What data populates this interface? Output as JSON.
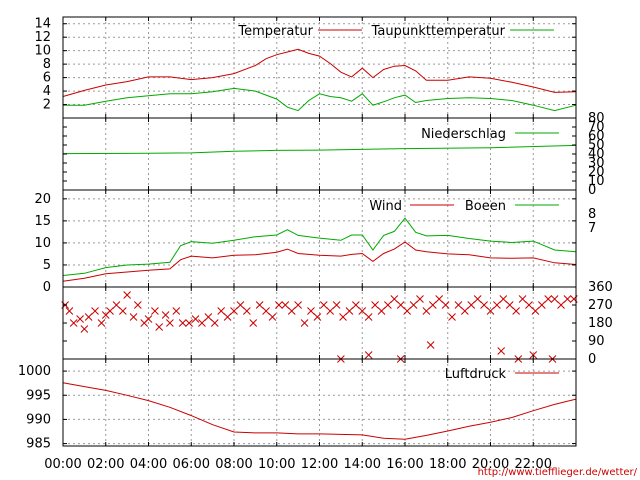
{
  "colors": {
    "red": "#cc0000",
    "green": "#00aa00",
    "grid": "#9a9a9a",
    "frame": "#000000"
  },
  "credit": "http://www.tiefflieger.de/wetter/",
  "chart_data": [
    {
      "panel": "temperature",
      "type": "line",
      "x_unit": "hours",
      "x_range": [
        0,
        24
      ],
      "ylim": [
        0,
        15
      ],
      "y_ticks": [
        2,
        4,
        6,
        8,
        10,
        12,
        14
      ],
      "grid": true,
      "legend_position": "top-right",
      "series": [
        {
          "name": "Temperatur",
          "color": "red",
          "x": [
            0,
            1,
            2,
            3,
            4,
            5,
            6,
            7,
            8,
            9,
            9.5,
            10,
            10.5,
            11,
            11.5,
            12,
            12.5,
            13,
            13.5,
            14,
            14.5,
            15,
            15.5,
            16,
            16.5,
            17,
            18,
            19,
            20,
            21,
            22,
            23,
            24
          ],
          "y": [
            3.2,
            4.1,
            4.9,
            5.4,
            6.1,
            6.1,
            5.7,
            6.0,
            6.6,
            7.8,
            8.8,
            9.4,
            9.8,
            10.2,
            9.6,
            9.2,
            8.1,
            6.8,
            6.1,
            7.4,
            6.0,
            7.2,
            7.7,
            7.8,
            7.0,
            5.6,
            5.6,
            6.1,
            5.9,
            5.3,
            4.6,
            3.8,
            3.9
          ]
        },
        {
          "name": "Taupunkttemperatur",
          "color": "green",
          "x": [
            0,
            1,
            2,
            3,
            4,
            5,
            6,
            7,
            8,
            9,
            9.5,
            10,
            10.5,
            11,
            11.5,
            12,
            12.5,
            13,
            13.5,
            14,
            14.5,
            15,
            15.5,
            16,
            16.5,
            17,
            18,
            19,
            20,
            21,
            22,
            23,
            24
          ],
          "y": [
            1.9,
            1.9,
            2.5,
            3.0,
            3.3,
            3.6,
            3.6,
            3.9,
            4.4,
            4.0,
            3.4,
            2.8,
            1.6,
            1.1,
            2.6,
            3.6,
            3.2,
            3.0,
            2.5,
            3.6,
            1.9,
            2.4,
            3.0,
            3.4,
            2.3,
            2.6,
            2.9,
            3.0,
            2.9,
            2.6,
            1.9,
            1.1,
            1.9
          ]
        }
      ]
    },
    {
      "panel": "precipitation",
      "type": "line",
      "x_unit": "hours",
      "x_range": [
        0,
        24
      ],
      "ylim": [
        0,
        80
      ],
      "y_ticks": [
        0,
        10,
        20,
        30,
        40,
        50,
        60,
        70,
        80
      ],
      "grid": false,
      "legend_position": "top-right",
      "series": [
        {
          "name": "Niederschlag",
          "color": "green",
          "x": [
            0,
            4,
            6,
            8,
            10,
            12,
            16,
            20,
            24
          ],
          "y": [
            40.5,
            40.8,
            41.2,
            43.0,
            44.0,
            44.3,
            46.0,
            47.0,
            49.5
          ]
        }
      ]
    },
    {
      "panel": "wind",
      "type": "line",
      "x_unit": "hours",
      "x_range": [
        0,
        24
      ],
      "ylim": [
        0,
        22
      ],
      "y_ticks": [
        0,
        5,
        10,
        15,
        20
      ],
      "secondary_y_ticks": [
        7,
        8
      ],
      "grid": true,
      "legend_position": "top-right",
      "series": [
        {
          "name": "Wind",
          "color": "red",
          "x": [
            0,
            1,
            2,
            3,
            4,
            5,
            5.5,
            6,
            7,
            8,
            9,
            10,
            10.5,
            11,
            12,
            13,
            13.5,
            14,
            14.5,
            15,
            15.5,
            16,
            16.5,
            17,
            18,
            19,
            20,
            21,
            22,
            23,
            24
          ],
          "y": [
            1.3,
            2.0,
            3.0,
            3.4,
            3.8,
            4.1,
            6.2,
            7.0,
            6.6,
            7.2,
            7.3,
            7.9,
            8.6,
            7.6,
            7.2,
            7.0,
            7.4,
            7.6,
            5.8,
            7.6,
            8.6,
            10.2,
            8.4,
            8.0,
            7.5,
            7.3,
            6.6,
            6.5,
            6.6,
            5.5,
            5.1
          ]
        },
        {
          "name": "Boeen",
          "color": "green",
          "x": [
            0,
            1,
            2,
            3,
            4,
            5,
            5.5,
            6,
            7,
            8,
            9,
            10,
            10.5,
            11,
            12,
            13,
            13.5,
            14,
            14.5,
            15,
            15.5,
            16,
            16.5,
            17,
            18,
            19,
            20,
            21,
            22,
            23,
            24
          ],
          "y": [
            2.6,
            3.1,
            4.4,
            5.0,
            5.2,
            5.6,
            9.4,
            10.3,
            9.9,
            10.6,
            11.4,
            11.8,
            13.0,
            11.7,
            11.1,
            10.6,
            11.8,
            11.8,
            8.4,
            11.7,
            12.6,
            15.6,
            12.4,
            11.6,
            11.7,
            11.0,
            10.4,
            10.1,
            10.4,
            8.4,
            8.0
          ]
        }
      ]
    },
    {
      "panel": "wind_direction",
      "type": "scatter",
      "x_unit": "hours",
      "x_range": [
        0,
        24
      ],
      "ylim": [
        0,
        360
      ],
      "y_ticks": [
        0,
        90,
        180,
        270,
        360
      ],
      "grid": false,
      "series": [
        {
          "name": "",
          "color": "red",
          "marker": "x",
          "x": [
            0.1,
            0.3,
            0.5,
            0.8,
            1.0,
            1.2,
            1.5,
            1.8,
            2.0,
            2.2,
            2.5,
            2.8,
            3.0,
            3.3,
            3.5,
            3.8,
            4.0,
            4.3,
            4.5,
            4.8,
            5.0,
            5.3,
            5.6,
            5.9,
            6.2,
            6.5,
            6.8,
            7.1,
            7.4,
            7.7,
            8.0,
            8.3,
            8.6,
            8.9,
            9.2,
            9.5,
            9.8,
            10.1,
            10.4,
            10.7,
            11.0,
            11.3,
            11.6,
            11.9,
            12.2,
            12.5,
            12.8,
            13.1,
            13.4,
            13.7,
            14.0,
            14.3,
            14.6,
            14.9,
            15.2,
            15.5,
            15.8,
            16.1,
            16.4,
            16.7,
            17.0,
            17.3,
            17.6,
            17.9,
            18.2,
            18.5,
            18.8,
            19.1,
            19.4,
            19.7,
            20.0,
            20.3,
            20.6,
            20.9,
            21.2,
            21.5,
            21.8,
            22.1,
            22.4,
            22.7,
            23.0,
            23.3,
            23.6,
            23.9,
            13.0,
            14.3,
            15.8,
            17.2,
            20.5,
            21.3,
            22.0,
            22.9
          ],
          "y": [
            270,
            240,
            180,
            200,
            150,
            210,
            240,
            180,
            220,
            240,
            270,
            240,
            320,
            210,
            270,
            180,
            200,
            240,
            160,
            220,
            180,
            240,
            180,
            180,
            200,
            180,
            210,
            180,
            240,
            210,
            240,
            270,
            240,
            180,
            270,
            240,
            210,
            270,
            270,
            240,
            270,
            180,
            240,
            210,
            270,
            240,
            270,
            210,
            240,
            270,
            240,
            210,
            270,
            240,
            270,
            300,
            270,
            240,
            270,
            300,
            240,
            270,
            300,
            270,
            210,
            270,
            240,
            270,
            300,
            270,
            240,
            270,
            300,
            270,
            240,
            300,
            270,
            240,
            270,
            300,
            300,
            270,
            300,
            300,
            0,
            20,
            0,
            70,
            40,
            0,
            20,
            0
          ]
        }
      ]
    },
    {
      "panel": "pressure",
      "type": "line",
      "x_unit": "hours",
      "x_range": [
        0,
        24
      ],
      "ylim": [
        984.5,
        1002.5
      ],
      "y_ticks": [
        985,
        990,
        995,
        1000
      ],
      "x_tick_labels": [
        "00:00",
        "02:00",
        "04:00",
        "06:00",
        "08:00",
        "10:00",
        "12:00",
        "14:00",
        "16:00",
        "18:00",
        "20:00",
        "22:00"
      ],
      "grid": true,
      "legend_position": "top-right",
      "series": [
        {
          "name": "Luftdruck",
          "color": "red",
          "x": [
            0,
            1,
            2,
            3,
            4,
            5,
            6,
            7,
            8,
            9,
            10,
            11,
            12,
            13,
            14,
            15,
            16,
            17,
            18,
            19,
            20,
            21,
            22,
            23,
            24
          ],
          "y": [
            997.6,
            996.8,
            996.0,
            995.0,
            993.9,
            992.5,
            990.8,
            988.9,
            987.4,
            987.2,
            987.2,
            987.0,
            987.0,
            986.9,
            986.8,
            986.1,
            985.9,
            986.7,
            987.6,
            988.6,
            989.4,
            990.4,
            991.8,
            993.1,
            994.2
          ]
        }
      ]
    }
  ]
}
